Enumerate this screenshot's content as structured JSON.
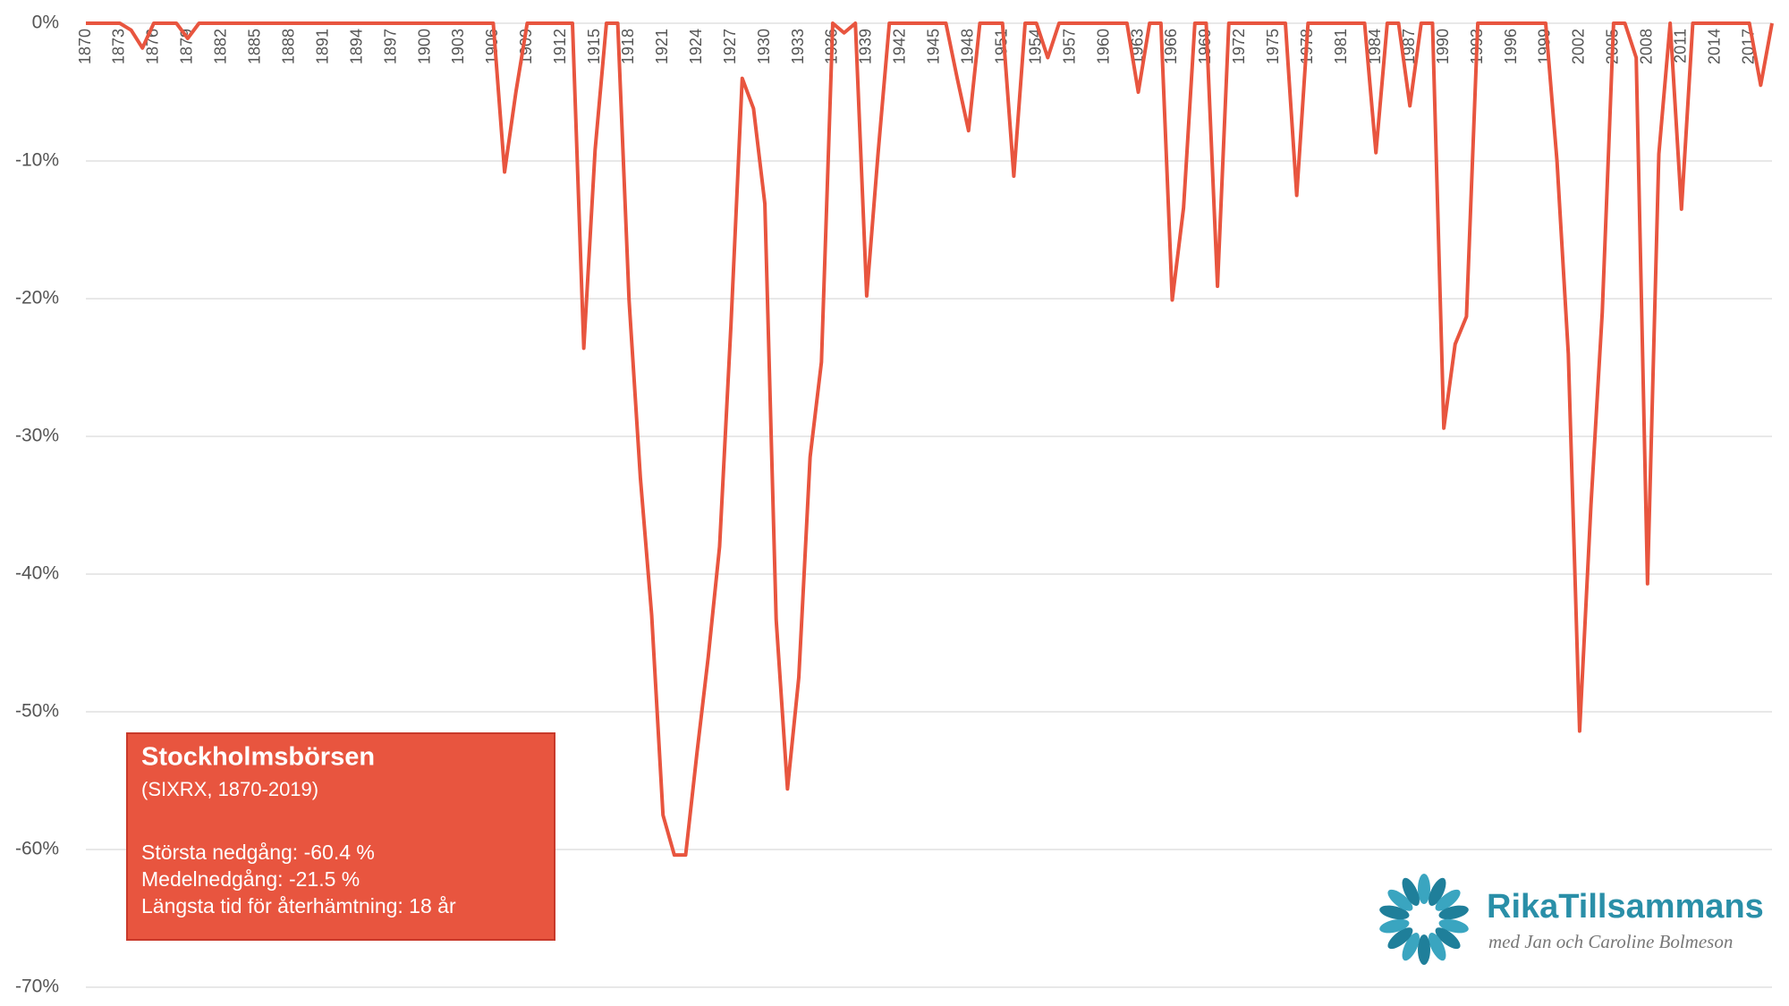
{
  "chart_data": {
    "type": "line",
    "color": "#e8553f",
    "grid": true,
    "xlim": [
      1870,
      2019
    ],
    "ylim": [
      -70,
      0
    ],
    "yticks": [
      {
        "value": -70,
        "label": "-70%"
      },
      {
        "value": -60,
        "label": "-60%"
      },
      {
        "value": -50,
        "label": "-50%"
      },
      {
        "value": -40,
        "label": "-40%"
      },
      {
        "value": -30,
        "label": "-30%"
      },
      {
        "value": -20,
        "label": "-20%"
      },
      {
        "value": -10,
        "label": "-10%"
      },
      {
        "value": 0,
        "label": "0%"
      }
    ],
    "xticks": [
      1870,
      1873,
      1876,
      1879,
      1882,
      1885,
      1888,
      1891,
      1894,
      1897,
      1900,
      1903,
      1906,
      1909,
      1912,
      1915,
      1918,
      1921,
      1924,
      1927,
      1930,
      1933,
      1936,
      1939,
      1942,
      1945,
      1948,
      1951,
      1954,
      1957,
      1960,
      1963,
      1966,
      1969,
      1972,
      1975,
      1978,
      1981,
      1984,
      1987,
      1990,
      1993,
      1996,
      1999,
      2002,
      2005,
      2008,
      2011,
      2014,
      2017
    ],
    "x": [
      1870,
      1871,
      1872,
      1873,
      1874,
      1875,
      1876,
      1877,
      1878,
      1879,
      1880,
      1881,
      1882,
      1883,
      1884,
      1885,
      1886,
      1887,
      1888,
      1889,
      1890,
      1891,
      1892,
      1893,
      1894,
      1895,
      1896,
      1897,
      1898,
      1899,
      1900,
      1901,
      1902,
      1903,
      1904,
      1905,
      1906,
      1907,
      1908,
      1909,
      1910,
      1911,
      1912,
      1913,
      1914,
      1915,
      1916,
      1917,
      1918,
      1919,
      1920,
      1921,
      1922,
      1923,
      1924,
      1925,
      1926,
      1927,
      1928,
      1929,
      1930,
      1931,
      1932,
      1933,
      1934,
      1935,
      1936,
      1937,
      1938,
      1939,
      1940,
      1941,
      1942,
      1943,
      1944,
      1945,
      1946,
      1947,
      1948,
      1949,
      1950,
      1951,
      1952,
      1953,
      1954,
      1955,
      1956,
      1957,
      1958,
      1959,
      1960,
      1961,
      1962,
      1963,
      1964,
      1965,
      1966,
      1967,
      1968,
      1969,
      1970,
      1971,
      1972,
      1973,
      1974,
      1975,
      1976,
      1977,
      1978,
      1979,
      1980,
      1981,
      1982,
      1983,
      1984,
      1985,
      1986,
      1987,
      1988,
      1989,
      1990,
      1991,
      1992,
      1993,
      1994,
      1995,
      1996,
      1997,
      1998,
      1999,
      2000,
      2001,
      2002,
      2003,
      2004,
      2005,
      2006,
      2007,
      2008,
      2009,
      2010,
      2011,
      2012,
      2013,
      2014,
      2015,
      2016,
      2017,
      2018,
      2019
    ],
    "values": [
      0,
      0,
      0,
      0,
      -0.5,
      -1.8,
      0,
      0,
      0,
      -1.1,
      0,
      0,
      0,
      0,
      0,
      0,
      0,
      0,
      0,
      0,
      0,
      0,
      0,
      0,
      0,
      0,
      0,
      0,
      0,
      0,
      0,
      0,
      0,
      0,
      0,
      0,
      0,
      -10.8,
      -5,
      0,
      0,
      0,
      0,
      0,
      -23.6,
      -9.2,
      0,
      0,
      -20.1,
      -33,
      -43,
      -57.5,
      -60.4,
      -60.4,
      -53,
      -46,
      -38,
      -22,
      -4,
      -6.2,
      -13.1,
      -43.3,
      -55.6,
      -47.5,
      -31.5,
      -24.6,
      0,
      -0.7,
      0,
      -19.8,
      -9.5,
      0,
      0,
      0,
      0,
      0,
      0,
      -4,
      -7.8,
      0,
      0,
      0,
      -11.1,
      0,
      0,
      -2.5,
      0,
      0,
      0,
      0,
      0,
      0,
      0,
      -5,
      0,
      0,
      -20.1,
      -13.4,
      0,
      0,
      -19.1,
      0,
      0,
      0,
      0,
      0,
      0,
      -12.5,
      0,
      0,
      0,
      0,
      0,
      0,
      -9.4,
      0,
      0,
      -6,
      0,
      0,
      -29.4,
      -23.3,
      -21.3,
      0,
      0,
      0,
      0,
      0,
      0,
      0,
      -10,
      -24,
      -51.4,
      -35,
      -21,
      0,
      0,
      -2.5,
      -40.7,
      -9.5,
      0,
      -13.5,
      0,
      0,
      0,
      0,
      0,
      0,
      -4.5,
      0
    ],
    "annotation": {
      "title": "Stockholmsbörsen",
      "subtitle": "(SIXRX, 1870-2019)",
      "lines": [
        "Största nedgång: -60.4 %",
        "Medelnedgång: -21.5 %",
        "Längsta tid för återhämtning: 18 år"
      ]
    }
  },
  "logo": {
    "name": "RikaTillsammans",
    "tagline": "med Jan och Caroline Bolmeson"
  }
}
